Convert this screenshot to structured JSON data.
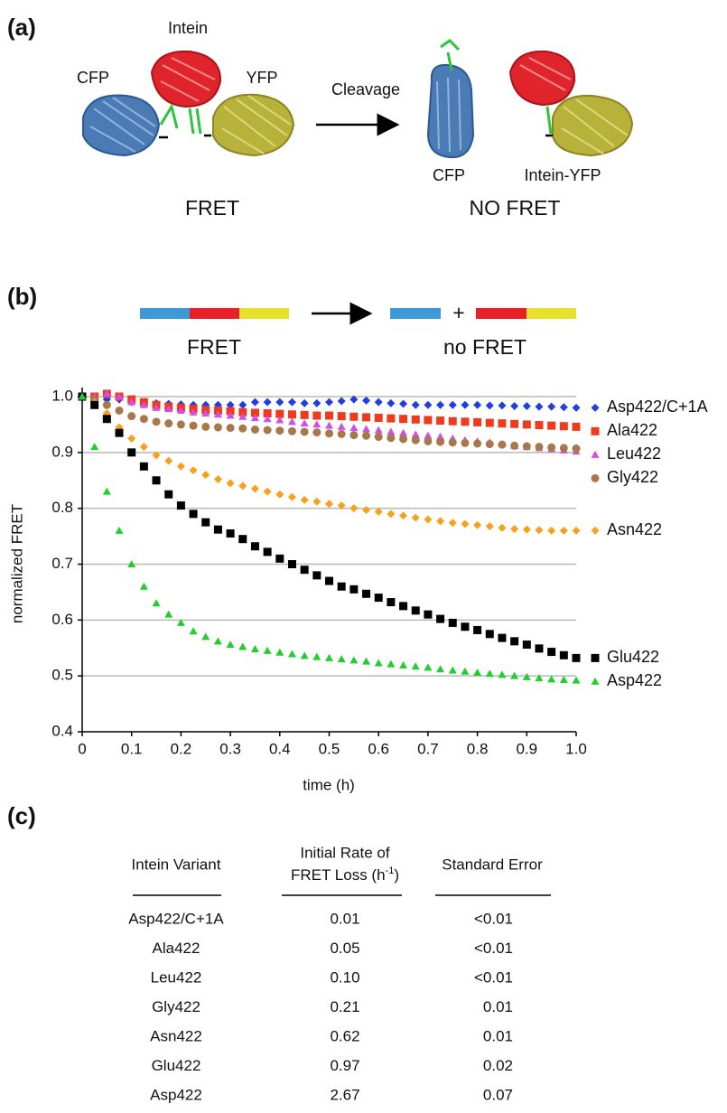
{
  "panel_a": {
    "label": "(a)",
    "intein": "Intein",
    "cfp": "CFP",
    "yfp": "YFP",
    "cleavage": "Cleavage",
    "fret": "FRET",
    "cfp_product": "CFP",
    "intein_yfp_product": "Intein-YFP",
    "no_fret": "NO FRET"
  },
  "panel_b": {
    "label": "(b)",
    "plus": "+",
    "fret": "FRET",
    "no_fret": "no FRET"
  },
  "chart_data": {
    "type": "scatter",
    "xlabel": "time (h)",
    "ylabel": "normalized FRET",
    "x": [
      0,
      0.025,
      0.05,
      0.075,
      0.1,
      0.125,
      0.15,
      0.175,
      0.2,
      0.225,
      0.25,
      0.275,
      0.3,
      0.325,
      0.35,
      0.375,
      0.4,
      0.425,
      0.45,
      0.475,
      0.5,
      0.525,
      0.55,
      0.575,
      0.6,
      0.625,
      0.65,
      0.675,
      0.7,
      0.725,
      0.75,
      0.775,
      0.8,
      0.825,
      0.85,
      0.875,
      0.9,
      0.925,
      0.95,
      0.975,
      1.0
    ],
    "xlim": [
      0,
      1
    ],
    "xticks": [
      0,
      0.1,
      0.2,
      0.3,
      0.4,
      0.5,
      0.6,
      0.7,
      0.8,
      0.9,
      {
        "value": 1,
        "label": "1.0"
      }
    ],
    "ylim": [
      0.4,
      1
    ],
    "yticks": [
      0.4,
      0.5,
      0.6,
      0.7,
      0.8,
      0.9,
      {
        "value": 1,
        "label": "1.0"
      }
    ],
    "grid": true,
    "series": [
      {
        "name": "Asp422/C+1A",
        "color": "#1f3fe0",
        "marker": "diamond",
        "values": [
          1.0,
          1.0,
          0.995,
          0.995,
          0.99,
          0.99,
          0.988,
          0.987,
          0.986,
          0.985,
          0.985,
          0.985,
          0.985,
          0.985,
          0.99,
          0.99,
          0.99,
          0.99,
          0.988,
          0.988,
          0.99,
          0.992,
          0.995,
          0.993,
          0.99,
          0.988,
          0.987,
          0.985,
          0.985,
          0.985,
          0.985,
          0.985,
          0.985,
          0.984,
          0.984,
          0.983,
          0.983,
          0.982,
          0.982,
          0.981,
          0.98
        ]
      },
      {
        "name": "Ala422",
        "color": "#f03a1e",
        "marker": "square",
        "values": [
          1.0,
          1.0,
          1.005,
          1.0,
          0.995,
          0.99,
          0.985,
          0.982,
          0.98,
          0.978,
          0.976,
          0.975,
          0.974,
          0.972,
          0.971,
          0.97,
          0.969,
          0.968,
          0.967,
          0.966,
          0.966,
          0.965,
          0.964,
          0.963,
          0.962,
          0.961,
          0.96,
          0.959,
          0.958,
          0.957,
          0.956,
          0.955,
          0.954,
          0.953,
          0.952,
          0.951,
          0.95,
          0.949,
          0.948,
          0.947,
          0.946
        ]
      },
      {
        "name": "Leu422",
        "color": "#d24ee8",
        "marker": "triangle",
        "values": [
          1.0,
          1.0,
          1.005,
          1.0,
          0.99,
          0.985,
          0.98,
          0.978,
          0.975,
          0.972,
          0.97,
          0.968,
          0.966,
          0.964,
          0.962,
          0.96,
          0.958,
          0.955,
          0.952,
          0.95,
          0.948,
          0.946,
          0.944,
          0.942,
          0.94,
          0.937,
          0.935,
          0.932,
          0.93,
          0.928,
          0.925,
          0.922,
          0.92,
          0.918,
          0.915,
          0.912,
          0.91,
          0.908,
          0.906,
          0.904,
          0.902
        ]
      },
      {
        "name": "Gly422",
        "color": "#a7784a",
        "marker": "circle",
        "values": [
          1.0,
          0.995,
          0.985,
          0.975,
          0.965,
          0.96,
          0.955,
          0.952,
          0.95,
          0.948,
          0.946,
          0.945,
          0.944,
          0.943,
          0.941,
          0.94,
          0.939,
          0.938,
          0.937,
          0.936,
          0.934,
          0.933,
          0.931,
          0.93,
          0.928,
          0.926,
          0.924,
          0.922,
          0.92,
          0.919,
          0.918,
          0.917,
          0.916,
          0.915,
          0.914,
          0.912,
          0.911,
          0.91,
          0.909,
          0.908,
          0.907
        ]
      },
      {
        "name": "Asn422",
        "color": "#f7a019",
        "marker": "diamond",
        "values": [
          1.0,
          0.99,
          0.97,
          0.945,
          0.925,
          0.91,
          0.895,
          0.885,
          0.875,
          0.868,
          0.86,
          0.852,
          0.845,
          0.84,
          0.835,
          0.83,
          0.825,
          0.82,
          0.815,
          0.812,
          0.808,
          0.805,
          0.8,
          0.797,
          0.794,
          0.79,
          0.787,
          0.783,
          0.78,
          0.777,
          0.774,
          0.772,
          0.77,
          0.768,
          0.765,
          0.763,
          0.762,
          0.761,
          0.76,
          0.76,
          0.76
        ]
      },
      {
        "name": "Glu422",
        "color": "#000000",
        "marker": "square",
        "values": [
          1.0,
          0.985,
          0.96,
          0.935,
          0.9,
          0.875,
          0.85,
          0.825,
          0.805,
          0.79,
          0.775,
          0.762,
          0.755,
          0.745,
          0.732,
          0.722,
          0.71,
          0.7,
          0.69,
          0.68,
          0.67,
          0.66,
          0.655,
          0.647,
          0.64,
          0.632,
          0.625,
          0.617,
          0.61,
          0.602,
          0.595,
          0.588,
          0.582,
          0.575,
          0.568,
          0.562,
          0.556,
          0.549,
          0.543,
          0.537,
          0.532
        ]
      },
      {
        "name": "Asp422",
        "color": "#1fcf2c",
        "marker": "triangle",
        "values": [
          1.0,
          0.91,
          0.83,
          0.76,
          0.7,
          0.66,
          0.63,
          0.61,
          0.595,
          0.58,
          0.57,
          0.562,
          0.556,
          0.552,
          0.548,
          0.545,
          0.542,
          0.539,
          0.536,
          0.534,
          0.532,
          0.53,
          0.528,
          0.526,
          0.523,
          0.521,
          0.519,
          0.517,
          0.515,
          0.512,
          0.51,
          0.508,
          0.506,
          0.504,
          0.502,
          0.5,
          0.498,
          0.496,
          0.494,
          0.493,
          0.492
        ]
      }
    ]
  },
  "panel_c": {
    "label": "(c)",
    "table": {
      "header_variant": "Intein Variant",
      "header_rate_line1": "Initial Rate of",
      "header_rate_line2": "FRET Loss (h",
      "header_rate_sup": "-1",
      "header_rate_close": ")",
      "header_error": "Standard Error",
      "rows": [
        [
          "Asp422/C+1A",
          "0.01",
          "<0.01"
        ],
        [
          "Ala422",
          "0.05",
          "<0.01"
        ],
        [
          "Leu422",
          "0.10",
          "<0.01"
        ],
        [
          "Gly422",
          "0.21",
          "0.01"
        ],
        [
          "Asn422",
          "0.62",
          "0.01"
        ],
        [
          "Glu422",
          "0.97",
          "0.02"
        ],
        [
          "Asp422",
          "2.67",
          "0.07"
        ]
      ]
    }
  }
}
